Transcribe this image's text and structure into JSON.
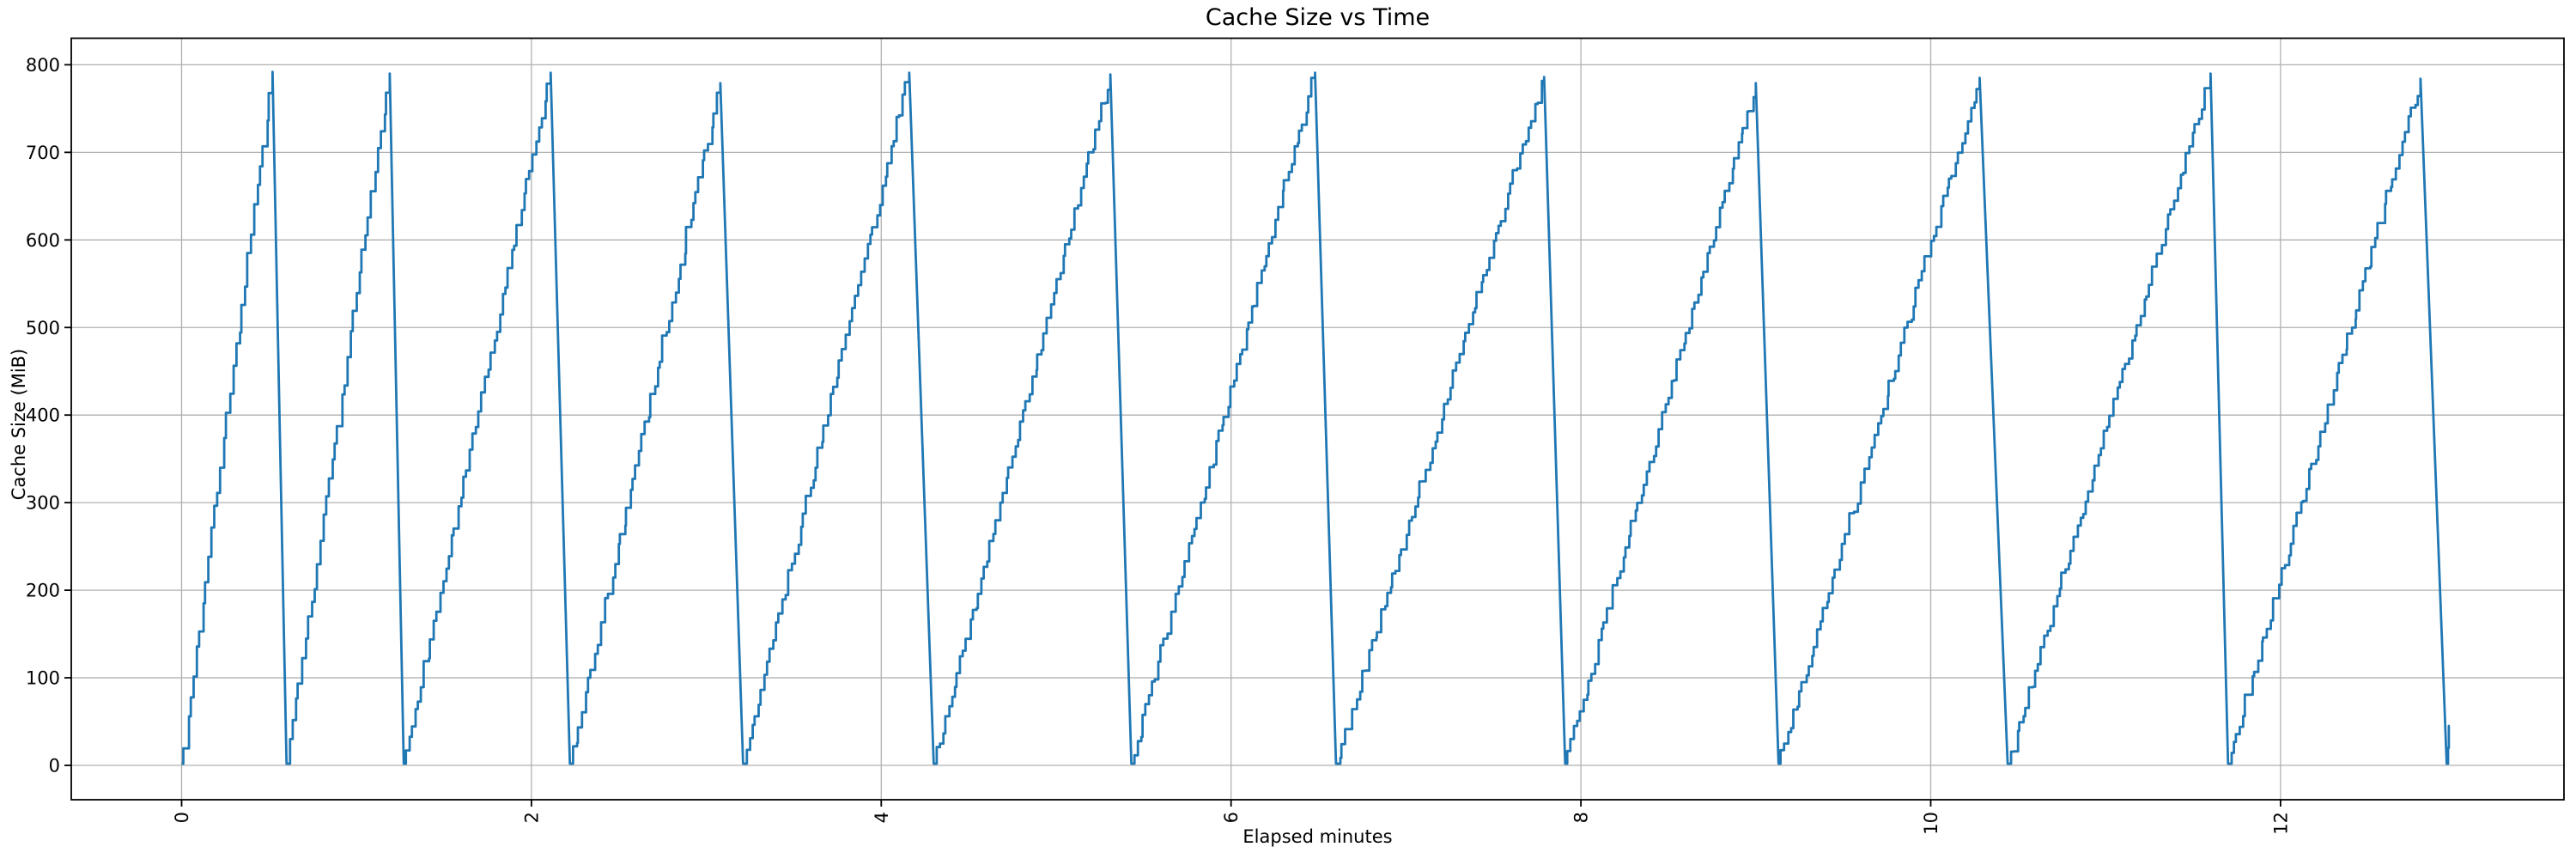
{
  "chart_data": {
    "type": "line",
    "title": "Cache Size vs Time",
    "xlabel": "Elapsed minutes",
    "ylabel": "Cache Size (MiB)",
    "xlim": [
      -0.65,
      13.63
    ],
    "ylim": [
      -39.5,
      829.5
    ],
    "xticks": [
      0,
      2,
      4,
      6,
      8,
      10,
      12
    ],
    "yticks": [
      0,
      100,
      200,
      300,
      400,
      500,
      600,
      700,
      800
    ],
    "xtick_rotation_deg": 90,
    "grid": true,
    "legend": "none",
    "line_color": "#1f77b4",
    "grid_color": "#b0b0b0",
    "spine_color": "#000000",
    "pattern": "repeating sawtooth: staircase rise from 0 MiB to ~790 MiB, then near-vertical reset back to 0",
    "cycles": [
      {
        "start": 0.0,
        "peak_t": 0.52,
        "reset_t": 0.6,
        "peak": 792
      },
      {
        "start": 0.6,
        "peak_t": 1.19,
        "reset_t": 1.27,
        "peak": 790
      },
      {
        "start": 1.27,
        "peak_t": 2.11,
        "reset_t": 2.22,
        "peak": 791
      },
      {
        "start": 2.22,
        "peak_t": 3.08,
        "reset_t": 3.21,
        "peak": 779
      },
      {
        "start": 3.21,
        "peak_t": 4.16,
        "reset_t": 4.3,
        "peak": 791
      },
      {
        "start": 4.3,
        "peak_t": 5.31,
        "reset_t": 5.43,
        "peak": 789
      },
      {
        "start": 5.43,
        "peak_t": 6.48,
        "reset_t": 6.6,
        "peak": 791
      },
      {
        "start": 6.6,
        "peak_t": 7.79,
        "reset_t": 7.91,
        "peak": 786
      },
      {
        "start": 7.91,
        "peak_t": 9.0,
        "reset_t": 9.13,
        "peak": 779
      },
      {
        "start": 9.13,
        "peak_t": 10.28,
        "reset_t": 10.44,
        "peak": 785
      },
      {
        "start": 10.44,
        "peak_t": 11.6,
        "reset_t": 11.7,
        "peak": 790
      },
      {
        "start": 11.7,
        "peak_t": 12.8,
        "reset_t": 12.95,
        "peak": 784
      }
    ],
    "tail": [
      [
        12.952,
        2
      ],
      [
        12.958,
        2
      ],
      [
        12.958,
        20
      ],
      [
        12.962,
        20
      ],
      [
        12.962,
        45
      ],
      [
        12.968,
        45
      ]
    ]
  }
}
